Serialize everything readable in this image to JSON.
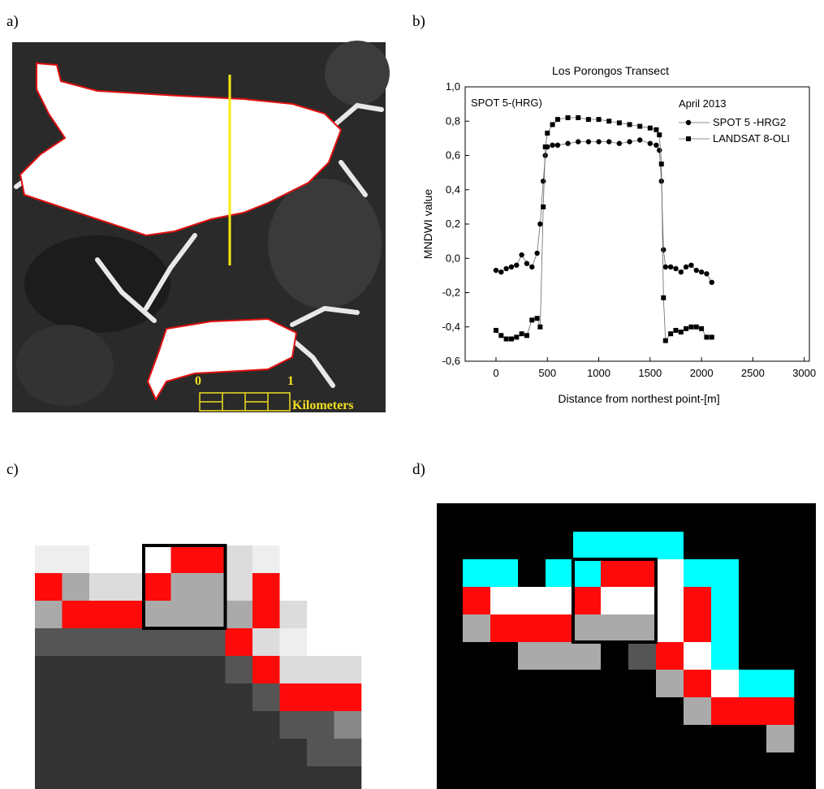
{
  "panels": {
    "a": {
      "label": "a)",
      "scale_start": "0",
      "scale_end": "1",
      "scale_unit": "Kilometers"
    },
    "b": {
      "label": "b)"
    },
    "c": {
      "label": "c)"
    },
    "d": {
      "label": "d)"
    }
  },
  "chart_data": {
    "type": "line",
    "title": "Los Porongos Transect",
    "xlabel": "Distance from northest point-[m]",
    "ylabel": "MNDWI value",
    "annotation": "SPOT 5-(HRG)",
    "legend_title": "April 2013",
    "legend": "upper right",
    "x": [
      0,
      50,
      100,
      150,
      200,
      250,
      300,
      350,
      400,
      430,
      460,
      480,
      500,
      550,
      600,
      700,
      800,
      900,
      1000,
      1100,
      1200,
      1300,
      1400,
      1500,
      1560,
      1590,
      1610,
      1630,
      1650,
      1700,
      1750,
      1800,
      1850,
      1900,
      1950,
      2000,
      2050,
      2100
    ],
    "series": [
      {
        "name": "SPOT 5 -HRG2",
        "color": "#000000",
        "marker": "circle",
        "values": [
          -0.07,
          -0.08,
          -0.06,
          -0.05,
          -0.04,
          0.02,
          -0.03,
          -0.05,
          0.03,
          0.2,
          0.45,
          0.6,
          0.65,
          0.66,
          0.66,
          0.67,
          0.68,
          0.68,
          0.68,
          0.68,
          0.67,
          0.68,
          0.69,
          0.67,
          0.66,
          0.63,
          0.45,
          0.05,
          -0.05,
          -0.05,
          -0.06,
          -0.08,
          -0.05,
          -0.04,
          -0.07,
          -0.08,
          -0.09,
          -0.14
        ]
      },
      {
        "name": "LANDSAT 8-OLI",
        "color": "#000000",
        "marker": "square",
        "values": [
          -0.42,
          -0.45,
          -0.47,
          -0.47,
          -0.46,
          -0.44,
          -0.45,
          -0.36,
          -0.35,
          -0.4,
          0.3,
          0.65,
          0.73,
          0.78,
          0.81,
          0.82,
          0.82,
          0.81,
          0.81,
          0.8,
          0.79,
          0.78,
          0.77,
          0.76,
          0.75,
          0.72,
          0.55,
          -0.23,
          -0.48,
          -0.44,
          -0.42,
          -0.43,
          -0.41,
          -0.4,
          -0.4,
          -0.41,
          -0.46,
          -0.46
        ]
      }
    ],
    "xlim": [
      -300,
      3050
    ],
    "ylim": [
      -0.6,
      1.0
    ],
    "xticks": [
      0,
      500,
      1000,
      1500,
      2000,
      2500,
      3000
    ],
    "yticks": [
      {
        "value": -0.6,
        "label": "-0,6"
      },
      {
        "value": -0.4,
        "label": "-0,4"
      },
      {
        "value": -0.2,
        "label": "-0,2"
      },
      {
        "value": 0,
        "label": "0,0"
      },
      {
        "value": 0.2,
        "label": "0,2"
      },
      {
        "value": 0.4,
        "label": "0,4"
      },
      {
        "value": 0.6,
        "label": "0,6"
      },
      {
        "value": 0.8,
        "label": "0,8"
      },
      {
        "value": 1.0,
        "label": "1,0"
      }
    ]
  }
}
